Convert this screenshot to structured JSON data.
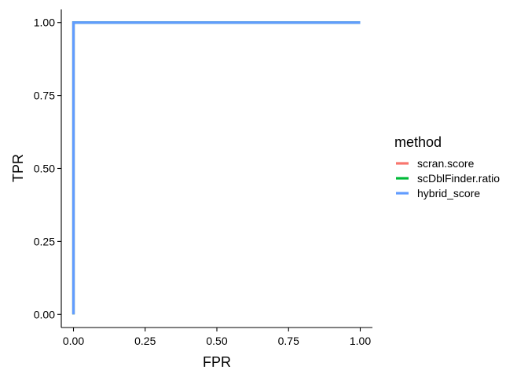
{
  "chart_data": {
    "type": "line",
    "title": "",
    "xlabel": "FPR",
    "ylabel": "TPR",
    "xlim": [
      -0.0425,
      1.0425
    ],
    "ylim": [
      -0.045,
      1.045
    ],
    "x_ticks": [
      0,
      0.25,
      0.5,
      0.75,
      1
    ],
    "x_tick_labels": [
      "0.00",
      "0.25",
      "0.50",
      "0.75",
      "1.00"
    ],
    "y_ticks": [
      0,
      0.25,
      0.5,
      0.75,
      1
    ],
    "y_tick_labels": [
      "0.00",
      "0.25",
      "0.50",
      "0.75",
      "1.00"
    ],
    "grid": false,
    "legend": {
      "title": "method",
      "position": "right"
    },
    "series": [
      {
        "name": "scran.score",
        "color": "#F8766D",
        "x": [
          0,
          0,
          1
        ],
        "y": [
          0,
          1,
          1
        ]
      },
      {
        "name": "scDblFinder.ratio",
        "color": "#00BA38",
        "x": [
          0,
          0,
          1
        ],
        "y": [
          0,
          1,
          1
        ]
      },
      {
        "name": "hybrid_score",
        "color": "#619CFF",
        "x": [
          0,
          0,
          1
        ],
        "y": [
          0,
          1,
          1
        ]
      }
    ]
  }
}
